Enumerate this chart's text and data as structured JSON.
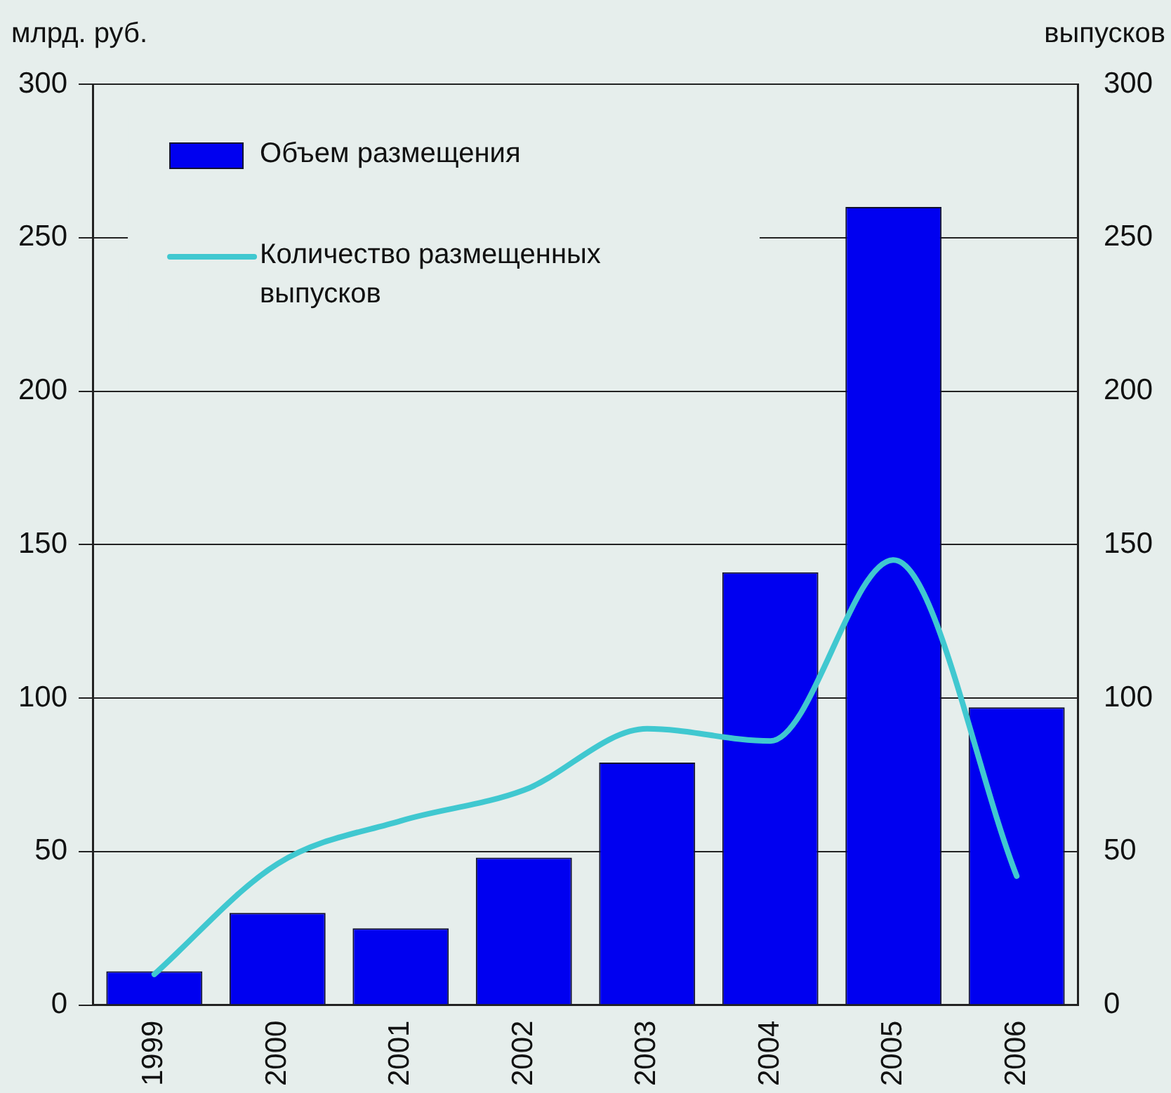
{
  "chart_data": {
    "type": "bar",
    "ylabel": "млрд. руб.",
    "y2label": "выпусков",
    "categories": [
      "1999",
      "2000",
      "2001",
      "2002",
      "2003",
      "2004",
      "2005",
      "2006"
    ],
    "series": [
      {
        "name": "Объем размещения",
        "color": "#0000f0",
        "values": [
          11,
          30,
          25,
          48,
          79,
          141,
          260,
          97
        ]
      },
      {
        "name": "Количество размещенных выпусков",
        "type": "line",
        "axis": "y2",
        "color": "#40c8d0",
        "values": [
          10,
          46,
          60,
          70,
          90,
          86,
          145,
          42
        ]
      }
    ],
    "ylim": [
      0,
      300
    ],
    "yticks": [
      0,
      50,
      100,
      150,
      200,
      250,
      300
    ],
    "y2lim": [
      0,
      300
    ],
    "y2ticks": [
      0,
      50,
      100,
      150,
      200,
      250,
      300
    ],
    "grid": "y",
    "legend": "top left",
    "marker": "none",
    "line_style": "solid"
  }
}
